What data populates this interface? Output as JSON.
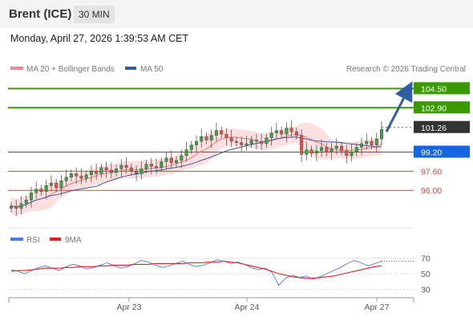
{
  "header": {
    "instrument": "Brent (ICE)",
    "interval": "30 MIN"
  },
  "timestamp": "Monday, April 27, 2026 1:39:53 AM CET",
  "credit": "Research © 2026 Trading Central",
  "colors": {
    "resistance": "#3a9a00",
    "current": "#333333",
    "pivot": "#1565e0",
    "support": "#d94343",
    "bands": "#fbd9d9",
    "ma20": "#f08a8a",
    "ma50": "#3a5ba0",
    "rsi": "#4a7be0",
    "rsi_ma": "#e02020",
    "candle": "#e05050"
  },
  "chart_data": [
    {
      "type": "line",
      "subtype": "candlestick",
      "legend": [
        {
          "name": "MA 20 + Bollinger Bands",
          "color": "#f08a8a"
        },
        {
          "name": "MA 50",
          "color": "#3a5ba0"
        }
      ],
      "x_ticks": [
        "Apr 23",
        "Apr 24",
        "Apr 27"
      ],
      "ylim": [
        93.0,
        105.4
      ],
      "y_axis": "unlabeled",
      "levels": [
        {
          "label": "104.50",
          "value": 104.5,
          "role": "resistance"
        },
        {
          "label": "102.90",
          "value": 102.9,
          "role": "resistance"
        },
        {
          "label": "101.26",
          "value": 101.26,
          "role": "current"
        },
        {
          "label": "99.20",
          "value": 99.2,
          "role": "pivot"
        },
        {
          "label": "97.60",
          "value": 97.6,
          "role": "support"
        },
        {
          "label": "96.00",
          "value": 96.0,
          "role": "support"
        }
      ],
      "projection": {
        "from": 100.9,
        "to": 104.4,
        "direction": "up"
      },
      "close_path": [
        94.7,
        94.5,
        94.9,
        95.2,
        95.8,
        96.1,
        95.9,
        96.4,
        96.6,
        96.2,
        96.8,
        97.1,
        97.4,
        97.2,
        97.0,
        97.3,
        97.6,
        97.4,
        97.9,
        97.7,
        97.5,
        97.8,
        98.1,
        97.9,
        97.6,
        97.4,
        97.8,
        98.2,
        98.0,
        97.9,
        98.4,
        98.7,
        98.3,
        98.5,
        98.9,
        99.4,
        99.8,
        100.1,
        100.5,
        100.2,
        100.6,
        101.0,
        100.7,
        100.4,
        100.1,
        100.0,
        99.8,
        99.9,
        100.2,
        100.1,
        99.9,
        100.4,
        100.8,
        101.0,
        100.7,
        101.2,
        100.9,
        100.6,
        99.0,
        99.4,
        99.1,
        99.3,
        99.6,
        99.2,
        99.5,
        99.7,
        99.3,
        98.9,
        99.2,
        99.6,
        99.9,
        100.1,
        99.8,
        100.3,
        101.1
      ]
    },
    {
      "type": "line",
      "legend": [
        {
          "name": "RSI",
          "color": "#4a7be0"
        },
        {
          "name": "9MA",
          "color": "#e02020"
        }
      ],
      "y_ticks": [
        70,
        50,
        30
      ],
      "ylim": [
        20,
        80
      ],
      "series": [
        {
          "name": "RSI",
          "values": [
            55,
            53,
            50,
            54,
            58,
            60,
            57,
            54,
            59,
            62,
            60,
            56,
            58,
            61,
            64,
            60,
            57,
            59,
            63,
            67,
            65,
            61,
            58,
            60,
            63,
            66,
            62,
            59,
            61,
            64,
            68,
            66,
            63,
            65,
            62,
            58,
            55,
            57,
            52,
            35,
            44,
            48,
            45,
            47,
            43,
            46,
            50,
            54,
            58,
            63,
            67,
            64,
            60,
            63,
            66
          ]
        },
        {
          "name": "9MA",
          "values": [
            53,
            54,
            54,
            55,
            56,
            57,
            57,
            57,
            58,
            58,
            59,
            59,
            59,
            60,
            60,
            61,
            61,
            61,
            62,
            62,
            62,
            63,
            63,
            63,
            63,
            63,
            64,
            64,
            64,
            65,
            65,
            66,
            65,
            64,
            62,
            60,
            58,
            56,
            53,
            50,
            48,
            46,
            45,
            44,
            44,
            45,
            46,
            47,
            49,
            51,
            53,
            55,
            57,
            59,
            60
          ]
        }
      ]
    }
  ]
}
